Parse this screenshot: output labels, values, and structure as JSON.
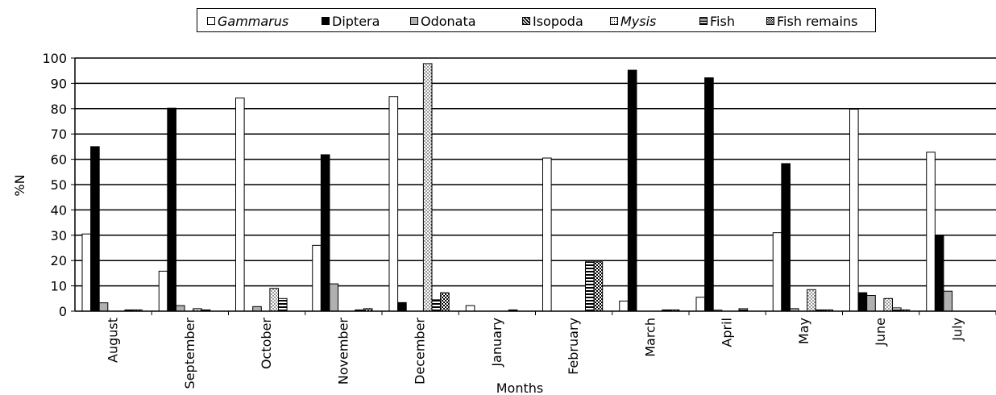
{
  "chart_data": {
    "type": "bar",
    "title": "",
    "xlabel": "Months",
    "ylabel": "%N",
    "ylim": [
      0,
      100
    ],
    "yticks": [
      0,
      10,
      20,
      30,
      40,
      50,
      60,
      70,
      80,
      90,
      100
    ],
    "grid": true,
    "legend_position": "top",
    "categories": [
      "August",
      "September",
      "October",
      "November",
      "December",
      "January",
      "February",
      "March",
      "April",
      "May",
      "June",
      "July"
    ],
    "series": [
      {
        "name": "Gammarus",
        "italic": true,
        "pattern": "white",
        "values": [
          30.5,
          15.8,
          84.2,
          26.0,
          84.8,
          2.2,
          60.5,
          4.0,
          5.5,
          31.0,
          79.8,
          62.8
        ]
      },
      {
        "name": "Diptera",
        "italic": false,
        "pattern": "black",
        "values": [
          65.0,
          80.2,
          0,
          61.8,
          3.4,
          0,
          0,
          95.2,
          92.2,
          58.3,
          7.3,
          29.8
        ]
      },
      {
        "name": "Odonata",
        "italic": false,
        "pattern": "gray",
        "values": [
          3.3,
          2.2,
          1.8,
          10.8,
          0,
          0,
          0,
          0,
          0.4,
          1.0,
          6.2,
          7.9
        ]
      },
      {
        "name": "Isopoda",
        "italic": false,
        "pattern": "hatch",
        "values": [
          0,
          0,
          0,
          0,
          0,
          0,
          0,
          0,
          0,
          0,
          0,
          0
        ]
      },
      {
        "name": "Mysis",
        "italic": true,
        "pattern": "dots",
        "values": [
          0,
          1.0,
          9.0,
          0,
          97.8,
          0,
          0,
          0,
          0,
          8.5,
          5.0,
          0
        ]
      },
      {
        "name": "Fish",
        "italic": false,
        "pattern": "hstripes",
        "values": [
          0.5,
          0.5,
          5.0,
          0.5,
          4.5,
          0.5,
          19.5,
          0.5,
          1.0,
          0.5,
          1.3,
          0
        ]
      },
      {
        "name": "Fish remains",
        "italic": false,
        "pattern": "checker",
        "values": [
          0.5,
          0,
          0,
          1.0,
          7.3,
          0,
          19.5,
          0.5,
          0,
          0.5,
          0.5,
          0
        ]
      }
    ]
  }
}
